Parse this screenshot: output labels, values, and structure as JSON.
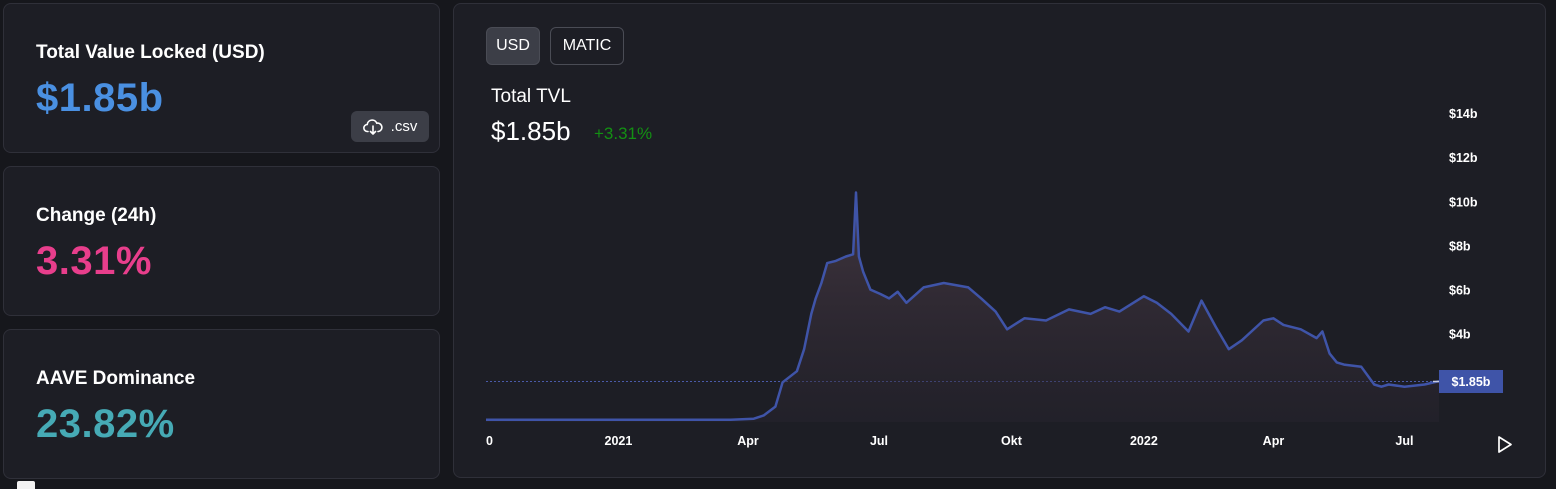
{
  "cards": {
    "tvl": {
      "label": "Total Value Locked (USD)",
      "value": "$1.85b",
      "color": "#4a90e2"
    },
    "change": {
      "label": "Change (24h)",
      "value": "3.31%",
      "color": "#e83e8c"
    },
    "dominance": {
      "label": "AAVE Dominance",
      "value": "23.82%",
      "color": "#46aab5"
    }
  },
  "csv_button": {
    "label": ".csv",
    "icon": "cloud-download-icon"
  },
  "chart": {
    "toggles": [
      "USD",
      "MATIC"
    ],
    "active_toggle": "USD",
    "title": "Total TVL",
    "value": "$1.85b",
    "change": "+3.31%",
    "change_color": "#139013",
    "play_icon": "play-icon"
  },
  "chart_data": {
    "type": "area",
    "title": "Total TVL",
    "ylim": [
      0,
      15
    ],
    "unit": "billions USD",
    "y_ticks": [
      "$14b",
      "$12b",
      "$10b",
      "$8b",
      "$6b",
      "$4b"
    ],
    "x_ticks": [
      "0",
      "2021",
      "Apr",
      "Jul",
      "Okt",
      "2022",
      "Apr",
      "Jul"
    ],
    "current_label": "$1.85b",
    "current_value": 1.85,
    "line_color": "#3f54a8",
    "x": [
      "2020-10-01",
      "2020-12-01",
      "2021-02-01",
      "2021-03-20",
      "2021-04-05",
      "2021-04-12",
      "2021-04-20",
      "2021-04-25",
      "2021-05-05",
      "2021-05-10",
      "2021-05-15",
      "2021-05-18",
      "2021-05-22",
      "2021-05-26",
      "2021-06-01",
      "2021-06-08",
      "2021-06-13",
      "2021-06-15",
      "2021-06-17",
      "2021-06-20",
      "2021-06-25",
      "2021-07-02",
      "2021-07-08",
      "2021-07-14",
      "2021-07-20",
      "2021-08-01",
      "2021-08-15",
      "2021-09-01",
      "2021-09-10",
      "2021-09-20",
      "2021-09-28",
      "2021-10-10",
      "2021-10-25",
      "2021-11-10",
      "2021-11-25",
      "2021-12-05",
      "2021-12-15",
      "2022-01-01",
      "2022-01-10",
      "2022-01-20",
      "2022-02-01",
      "2022-02-10",
      "2022-02-20",
      "2022-03-01",
      "2022-03-10",
      "2022-03-25",
      "2022-04-01",
      "2022-04-08",
      "2022-04-20",
      "2022-05-01",
      "2022-05-05",
      "2022-05-10",
      "2022-05-15",
      "2022-05-20",
      "2022-06-01",
      "2022-06-10",
      "2022-06-15",
      "2022-06-20",
      "2022-07-01",
      "2022-07-15",
      "2022-07-25"
    ],
    "y": [
      0.1,
      0.1,
      0.1,
      0.1,
      0.15,
      0.3,
      0.7,
      1.8,
      2.3,
      3.3,
      4.9,
      5.6,
      6.3,
      7.2,
      7.3,
      7.5,
      7.6,
      10.4,
      7.5,
      6.8,
      6.0,
      5.8,
      5.6,
      5.9,
      5.4,
      6.1,
      6.3,
      6.1,
      5.6,
      5.0,
      4.2,
      4.7,
      4.6,
      5.1,
      4.9,
      5.2,
      5.0,
      5.7,
      5.4,
      4.9,
      4.1,
      5.5,
      4.3,
      3.3,
      3.7,
      4.6,
      4.7,
      4.4,
      4.2,
      3.8,
      4.1,
      3.1,
      2.7,
      2.6,
      2.5,
      1.7,
      1.6,
      1.7,
      1.6,
      1.7,
      1.85
    ]
  }
}
